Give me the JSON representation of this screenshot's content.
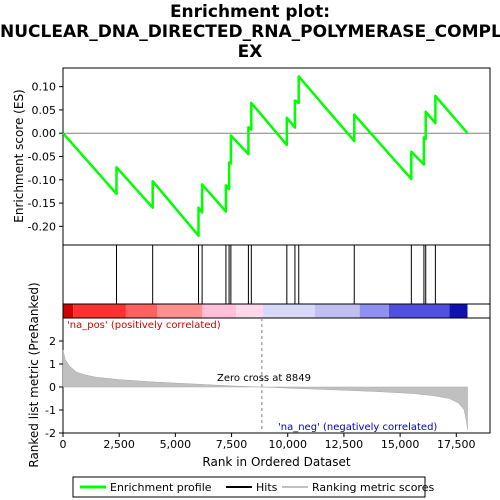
{
  "title_lines": [
    "Enrichment plot:",
    "NUCLEAR_DNA_DIRECTED_RNA_POLYMERASE_COMPL",
    "EX"
  ],
  "chart_data": {
    "type": "line",
    "es_panel": {
      "ylabel": "Enrichment score (ES)",
      "ylim": [
        -0.24,
        0.14
      ],
      "yticks": [
        -0.2,
        -0.15,
        -0.1,
        -0.05,
        0.0,
        0.05,
        0.1
      ],
      "ytick_labels": [
        "-0.20",
        "-0.15",
        "-0.10",
        "-0.05",
        "0.00",
        "0.05",
        "0.10"
      ],
      "line_color": "#00ff00",
      "points": [
        [
          0,
          0.0
        ],
        [
          2380,
          -0.13
        ],
        [
          2380,
          -0.073
        ],
        [
          3990,
          -0.16
        ],
        [
          3990,
          -0.103
        ],
        [
          6030,
          -0.22
        ],
        [
          6030,
          -0.16
        ],
        [
          6190,
          -0.17
        ],
        [
          6190,
          -0.11
        ],
        [
          7250,
          -0.168
        ],
        [
          7250,
          -0.112
        ],
        [
          7390,
          -0.12
        ],
        [
          7390,
          -0.063
        ],
        [
          7470,
          -0.065
        ],
        [
          7470,
          -0.005
        ],
        [
          8250,
          -0.045
        ],
        [
          8250,
          0.013
        ],
        [
          8380,
          0.008
        ],
        [
          8380,
          0.065
        ],
        [
          9960,
          -0.025
        ],
        [
          9960,
          0.033
        ],
        [
          10320,
          0.012
        ],
        [
          10320,
          0.07
        ],
        [
          10490,
          0.065
        ],
        [
          10490,
          0.122
        ],
        [
          12960,
          -0.017
        ],
        [
          12960,
          0.04
        ],
        [
          15500,
          -0.098
        ],
        [
          15500,
          -0.04
        ],
        [
          16060,
          -0.067
        ],
        [
          16060,
          -0.009
        ],
        [
          16140,
          -0.012
        ],
        [
          16140,
          0.046
        ],
        [
          16570,
          0.022
        ],
        [
          16570,
          0.08
        ],
        [
          18000,
          0.0
        ]
      ]
    },
    "hits": [
      2380,
      3990,
      6030,
      6190,
      7250,
      7390,
      7470,
      8250,
      8380,
      9960,
      10320,
      10490,
      12960,
      15500,
      16060,
      16140,
      16570
    ],
    "ranked_panel": {
      "ylabel": "Ranked list metric (PreRanked)",
      "ylim": [
        -2,
        3
      ],
      "yticks": [
        -2,
        -1,
        0,
        1,
        2
      ],
      "ytick_labels": [
        "-2",
        "-1",
        "0",
        "1",
        "2"
      ],
      "xlabel": "Rank in Ordered Dataset",
      "xlim": [
        0,
        19000
      ],
      "xticks": [
        0,
        2500,
        5000,
        7500,
        10000,
        12500,
        15000,
        17500
      ],
      "xtick_labels": [
        "0",
        "2,500",
        "5,000",
        "7,500",
        "10,000",
        "12,500",
        "15,000",
        "17,500"
      ],
      "metric_profile": [
        [
          0,
          1.6
        ],
        [
          100,
          1.2
        ],
        [
          300,
          0.9
        ],
        [
          600,
          0.65
        ],
        [
          1000,
          0.52
        ],
        [
          1500,
          0.42
        ],
        [
          2500,
          0.32
        ],
        [
          4000,
          0.22
        ],
        [
          6000,
          0.12
        ],
        [
          7500,
          0.05
        ],
        [
          8849,
          0.0
        ],
        [
          10000,
          -0.05
        ],
        [
          12000,
          -0.12
        ],
        [
          14000,
          -0.2
        ],
        [
          15500,
          -0.28
        ],
        [
          16500,
          -0.38
        ],
        [
          17200,
          -0.5
        ],
        [
          17600,
          -0.7
        ],
        [
          17850,
          -1.0
        ],
        [
          17950,
          -1.5
        ],
        [
          18000,
          -1.85
        ]
      ],
      "zero_cross_label": "Zero cross at 8849",
      "zero_cross": 8849,
      "pos_label": "'na_pos' (positively correlated)",
      "neg_label": "'na_neg' (negatively correlated)"
    },
    "colorbar_segments": [
      [
        0,
        450,
        "#d40000"
      ],
      [
        450,
        2800,
        "#ff3030"
      ],
      [
        2800,
        4200,
        "#ff6060"
      ],
      [
        4200,
        6200,
        "#ff9090"
      ],
      [
        6200,
        7700,
        "#ffc0d8"
      ],
      [
        7700,
        8900,
        "#ffd8ec"
      ],
      [
        8900,
        11200,
        "#d8d8f8"
      ],
      [
        11200,
        13200,
        "#c0c0f0"
      ],
      [
        13200,
        14500,
        "#9090f0"
      ],
      [
        14500,
        17200,
        "#5050e0"
      ],
      [
        17200,
        18000,
        "#1010b0"
      ]
    ],
    "legend": [
      "Enrichment profile",
      "Hits",
      "Ranking metric scores"
    ]
  }
}
